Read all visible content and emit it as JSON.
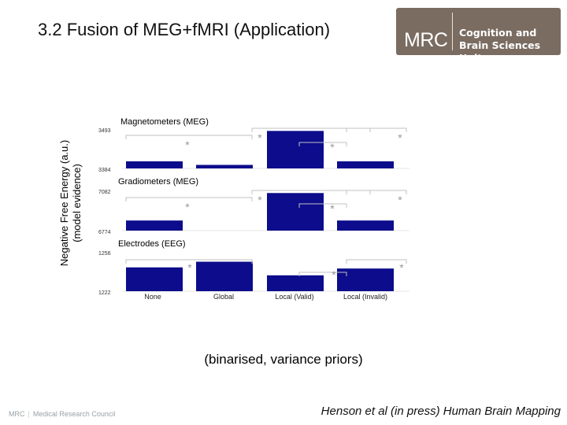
{
  "slide": {
    "title": "3.2 Fusion of MEG+fMRI (Application)",
    "caption": "(binarised, variance priors)",
    "citation": "Henson et al (in press) Human Brain Mapping",
    "footer_org": "Medical Research Council",
    "footer_mrc": "MRC"
  },
  "logo": {
    "mark": "MRC",
    "line1": "Cognition and",
    "line2": "Brain Sciences Unit",
    "color": "#7a6c61"
  },
  "y_axis_label": {
    "line1": "Negative Free Energy (a.u.)",
    "line2": "(model evidence)"
  },
  "colors": {
    "bar": "#0c0c8c",
    "bracket": "#c0c0c0",
    "star": "#c0c0c0"
  },
  "chart_data": [
    {
      "type": "bar",
      "title": "Magnetometers (MEG)",
      "categories": [
        "None",
        "Global",
        "Local (Valid)",
        "Local (Invalid)"
      ],
      "values": [
        3404,
        3394,
        3490,
        3404
      ],
      "ylim": [
        3384,
        3493
      ],
      "yticks": [
        "3493",
        "3384"
      ],
      "significance": [
        "*",
        "*",
        "*",
        "*"
      ]
    },
    {
      "type": "bar",
      "title": "Gradiometers (MEG)",
      "categories": [
        "None",
        "Global",
        "Local (Valid)",
        "Local (Invalid)"
      ],
      "values": [
        6853,
        6774,
        7068,
        6853
      ],
      "ylim": [
        6774,
        7082
      ],
      "yticks": [
        "7082",
        "6774"
      ],
      "significance": [
        "*",
        "*",
        "*",
        "*"
      ]
    },
    {
      "type": "bar",
      "title": "Electrodes (EEG)",
      "categories": [
        "None",
        "Global",
        "Local (Valid)",
        "Local (Invalid)"
      ],
      "values": [
        1243,
        1248,
        1236,
        1242
      ],
      "ylim": [
        1222,
        1256
      ],
      "yticks": [
        "1256",
        "1222"
      ],
      "significance": [
        "*",
        "*",
        "*"
      ]
    }
  ]
}
